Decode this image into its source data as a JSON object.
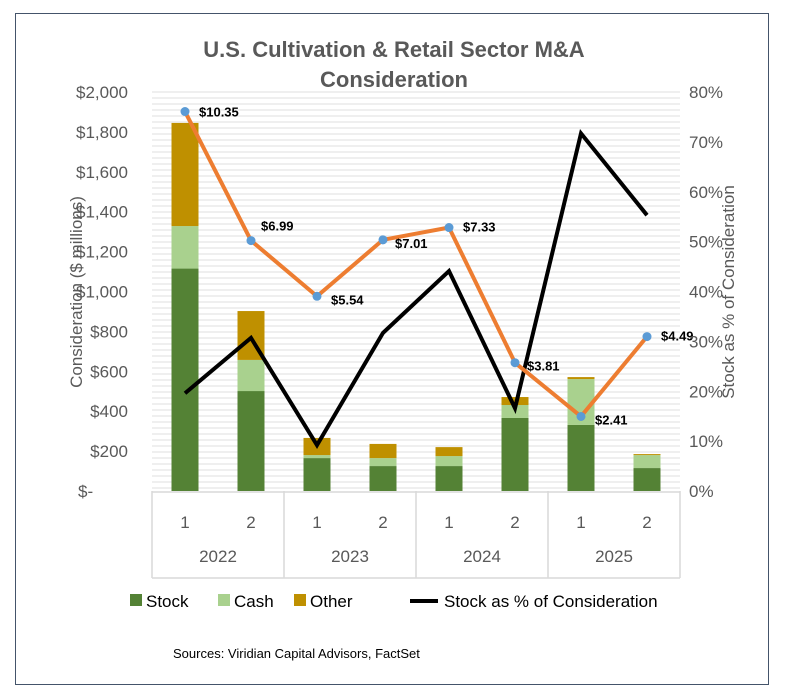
{
  "chart_data": {
    "type": "bar",
    "title": "U.S. Cultivation & Retail Sector M&A Consideration",
    "title_lines": [
      "U.S. Cultivation & Retail Sector M&A",
      "Consideration"
    ],
    "ylabel": "Consideration ($ millions)",
    "y2label": "Stock as % of Consideration",
    "ylim": [
      0,
      2000
    ],
    "y2lim": [
      0,
      80
    ],
    "yticks": [
      "$-",
      "$200",
      "$400",
      "$600",
      "$800",
      "$1,000",
      "$1,200",
      "$1,400",
      "$1,600",
      "$1,800",
      "$2,000"
    ],
    "y2ticks": [
      "0%",
      "10%",
      "20%",
      "30%",
      "40%",
      "50%",
      "60%",
      "70%",
      "80%"
    ],
    "categories": [
      "1",
      "2",
      "1",
      "2",
      "1",
      "2",
      "1",
      "2"
    ],
    "groups": [
      "2022",
      "2023",
      "2024",
      "2025"
    ],
    "series": [
      {
        "name": "Stock",
        "type": "bar",
        "color": "#548235",
        "values": [
          1115,
          501,
          165,
          125,
          125,
          366,
          331,
          115
        ]
      },
      {
        "name": "Cash",
        "type": "bar",
        "color": "#a9d18e",
        "values": [
          213,
          156,
          15,
          40,
          50,
          65,
          230,
          65
        ]
      },
      {
        "name": "Other",
        "type": "bar",
        "color": "#bf9000",
        "values": [
          517,
          245,
          86,
          71,
          45,
          40,
          10,
          5
        ]
      },
      {
        "name": "Stock as % of Consideration",
        "type": "line",
        "axis": "right",
        "color": "#000000",
        "values": [
          19.6,
          30.7,
          9.2,
          31.7,
          44.1,
          16.6,
          71.7,
          55.3
        ]
      },
      {
        "name": "",
        "type": "line",
        "color": "#ed7d31",
        "marker_color": "#5b9bd5",
        "values": [
          10.35,
          6.99,
          5.54,
          7.01,
          7.33,
          3.81,
          2.41,
          4.49
        ],
        "labels": [
          "$10.35",
          "$6.99",
          "$5.54",
          "$7.01",
          "$7.33",
          "$3.81",
          "$2.41",
          "$4.49"
        ]
      }
    ],
    "legend": [
      "Stock",
      "Cash",
      "Other",
      "Stock as % of Consideration"
    ],
    "legend_position": "bottom",
    "source": "Sources: Viridian Capital Advisors, FactSet"
  }
}
